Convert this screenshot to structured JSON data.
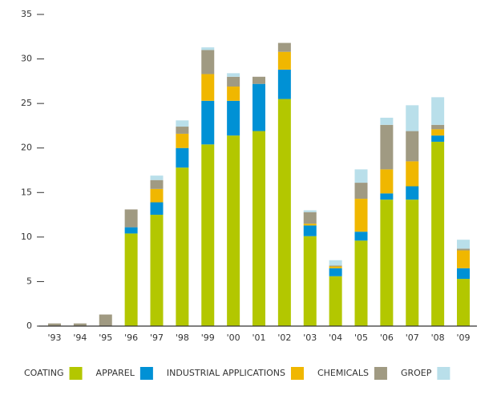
{
  "chart_data": {
    "type": "stacked_bar",
    "categories": [
      "'93",
      "'94",
      "'95",
      "'96",
      "'97",
      "'98",
      "'99",
      "'00",
      "'01",
      "'02",
      "'03",
      "'04",
      "'05",
      "'06",
      "'07",
      "'08",
      "'09"
    ],
    "series": [
      {
        "name": "COATING",
        "color": "#b3c700",
        "values": [
          0,
          0,
          0,
          10.4,
          12.5,
          17.8,
          20.4,
          21.4,
          21.9,
          25.5,
          10.1,
          5.6,
          9.6,
          14.2,
          14.2,
          20.7,
          5.3
        ]
      },
      {
        "name": "APPAREL",
        "color": "#0091d5",
        "values": [
          0,
          0,
          0,
          0.7,
          1.4,
          2.2,
          4.9,
          3.9,
          5.3,
          3.3,
          1.2,
          0.9,
          1.0,
          0.7,
          1.5,
          0.7,
          1.2
        ]
      },
      {
        "name": "INDUSTRIAL APPLICATIONS",
        "color": "#f0b700",
        "values": [
          0,
          0,
          0,
          0,
          1.5,
          1.6,
          3.0,
          1.6,
          0,
          2.0,
          0.2,
          0.2,
          3.7,
          2.7,
          2.8,
          0.7,
          2.0
        ]
      },
      {
        "name": "CHEMICALS",
        "color": "#a09a82",
        "values": [
          0.3,
          0.3,
          1.3,
          2.0,
          1.0,
          0.8,
          2.7,
          1.1,
          0.8,
          1.0,
          1.3,
          0.1,
          1.8,
          5.0,
          3.4,
          0.5,
          0.2
        ]
      },
      {
        "name": "GROEP",
        "color": "#b9dfea",
        "values": [
          0,
          0,
          0,
          0,
          0.5,
          0.7,
          0.3,
          0.4,
          0,
          0,
          0.2,
          0.6,
          1.5,
          0.8,
          2.9,
          3.1,
          1.0
        ]
      }
    ],
    "ylim": [
      0,
      35
    ],
    "yticks": [
      0,
      5,
      10,
      15,
      20,
      25,
      30,
      35
    ],
    "grid": false,
    "legend": "bottom"
  }
}
